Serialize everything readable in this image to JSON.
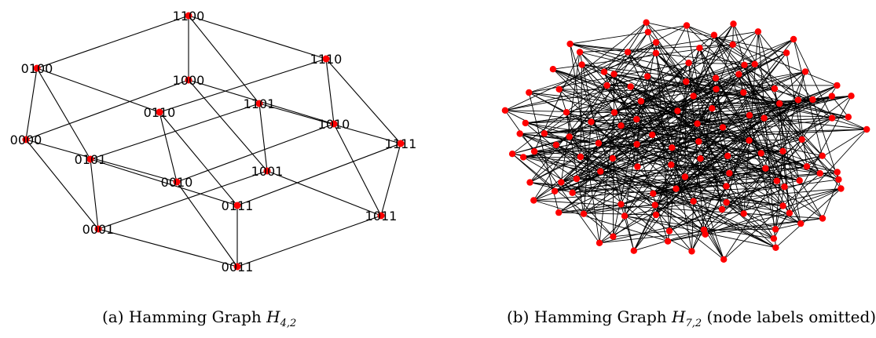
{
  "colors": {
    "node": "#ff0000",
    "edge": "#000000",
    "background": "#ffffff"
  },
  "graph_a": {
    "nodes": [
      "0000",
      "0001",
      "0010",
      "0011",
      "0100",
      "0101",
      "0110",
      "0111",
      "1000",
      "1001",
      "1010",
      "1011",
      "1100",
      "1101",
      "1110",
      "1111"
    ],
    "caption": {
      "prefix": "(a) Hamming Graph ",
      "symbol": "H",
      "subscript": "4,2",
      "suffix": ""
    }
  },
  "graph_b": {
    "node_count": 128,
    "caption": {
      "prefix": "(b) Hamming Graph ",
      "symbol": "H",
      "subscript": "7,2",
      "suffix": " (node labels omitted)"
    }
  }
}
